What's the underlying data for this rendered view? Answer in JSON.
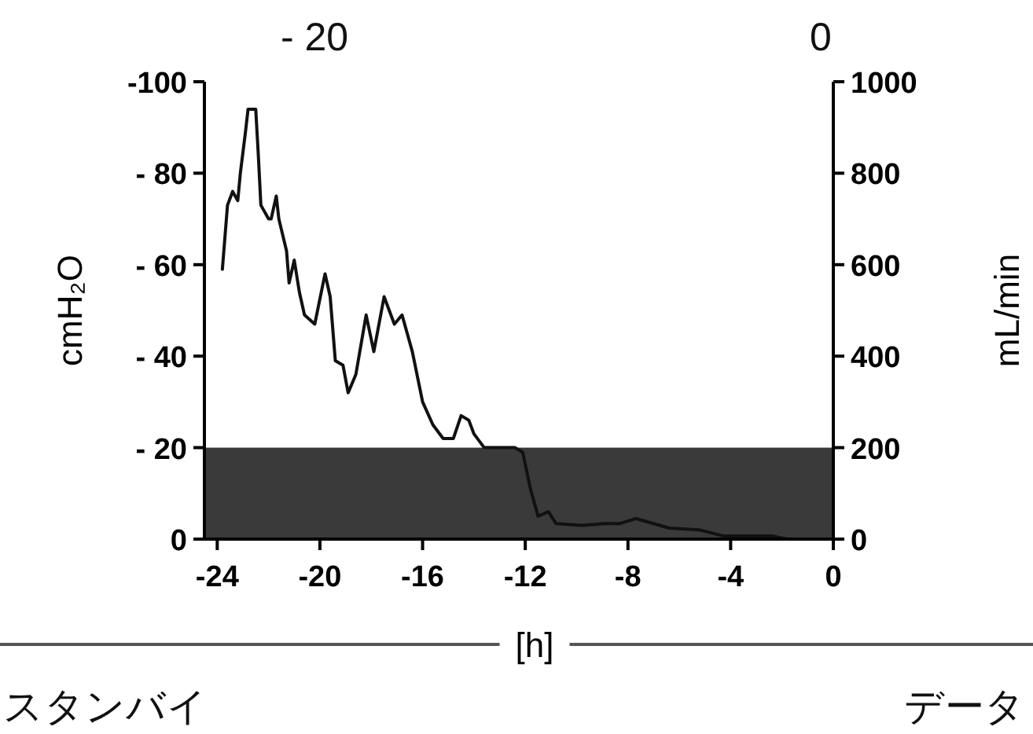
{
  "chart_data": {
    "type": "line",
    "xlabel": "[h]",
    "ylabel": "cmH₂O",
    "y2label": "mL/min",
    "annotations": [
      "- 20",
      "0",
      "スタンバイ",
      "データ"
    ],
    "xlim": [
      -24.5,
      0
    ],
    "xticks": [
      -24,
      -20,
      -16,
      -12,
      -8,
      -4,
      0
    ],
    "ylim": [
      0,
      -100
    ],
    "yticks": [
      {
        "value": -100,
        "label": "-100"
      },
      {
        "value": -80,
        "label": "- 80"
      },
      {
        "value": -60,
        "label": "- 60"
      },
      {
        "value": -40,
        "label": "- 40"
      },
      {
        "value": -20,
        "label": "- 20"
      },
      0
    ],
    "y2lim": [
      0,
      1000
    ],
    "y2ticks": [
      0,
      200,
      400,
      600,
      800,
      1000
    ],
    "marker": "none",
    "line_style": "solid",
    "bands": [
      {
        "axis": "y",
        "from": 0,
        "to": -20,
        "color": "#3a3a3a"
      }
    ],
    "series": [
      {
        "color": "#111111",
        "x": [
          -23.8,
          -23.7,
          -23.6,
          -23.4,
          -23.2,
          -23.1,
          -22.9,
          -22.8,
          -22.5,
          -22.4,
          -22.3,
          -22.0,
          -21.9,
          -21.7,
          -21.6,
          -21.3,
          -21.2,
          -21.0,
          -20.8,
          -20.6,
          -20.2,
          -19.8,
          -19.6,
          -19.4,
          -19.1,
          -18.9,
          -18.6,
          -18.2,
          -17.9,
          -17.5,
          -17.1,
          -16.8,
          -16.4,
          -16.0,
          -15.6,
          -15.2,
          -14.8,
          -14.5,
          -14.2,
          -14.0,
          -13.6,
          -13.2,
          -13.0,
          -12.4,
          -12.1,
          -11.8,
          -11.5,
          -11.1,
          -10.8,
          -9.8,
          -8.9,
          -8.3,
          -7.7,
          -7.0,
          -6.4,
          -5.2,
          -4.3,
          -2.4,
          -1.8
        ],
        "values": [
          -59,
          -66,
          -73,
          -76,
          -74,
          -80,
          -89,
          -94,
          -94,
          -84,
          -73,
          -70,
          -70,
          -75,
          -70,
          -63,
          -56,
          -61,
          -54,
          -49,
          -47,
          -58,
          -53,
          -39,
          -38,
          -32,
          -36,
          -49,
          -41,
          -53,
          -47,
          -49,
          -41,
          -30,
          -25,
          -22,
          -22,
          -27,
          -26,
          -23,
          -20,
          -20,
          -20,
          -20,
          -19,
          -11,
          -5,
          -6,
          -3.4,
          -3,
          -3.4,
          -3.4,
          -4.5,
          -3.4,
          -2.4,
          -2,
          -0.7,
          -0.7,
          0
        ]
      }
    ]
  }
}
